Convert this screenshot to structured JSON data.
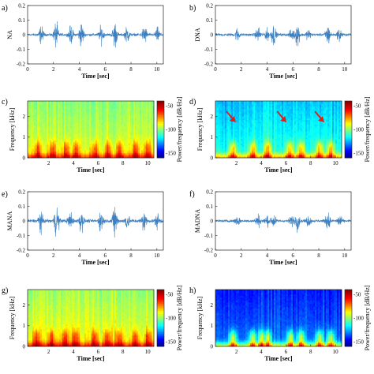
{
  "chart_data": [
    {
      "panel": "a)",
      "type": "line",
      "ylabel": "NA",
      "xlabel": "Time [sec]",
      "xlim": [
        0,
        10.5
      ],
      "xticks": [
        0,
        2,
        4,
        6,
        8,
        10
      ],
      "ylim": [
        -0.2,
        0.2
      ],
      "yticks": [
        -0.2,
        -0.1,
        0,
        0.1,
        0.2
      ],
      "ytick_labels": [
        "-0.2",
        "-0.1",
        "0",
        "0.1",
        "0.2"
      ],
      "bursts": [
        {
          "t": 1.05,
          "amp": 0.08
        },
        {
          "t": 2.2,
          "amp": 0.12
        },
        {
          "t": 3.35,
          "amp": 0.08
        },
        {
          "t": 4.15,
          "amp": 0.12
        },
        {
          "t": 5.7,
          "amp": 0.08
        },
        {
          "t": 6.75,
          "amp": 0.12
        },
        {
          "t": 7.7,
          "amp": 0.07
        },
        {
          "t": 9.05,
          "amp": 0.09
        },
        {
          "t": 10.05,
          "amp": 0.06
        }
      ],
      "noise_amp": 0.012,
      "color": "#3d7fbf"
    },
    {
      "panel": "b)",
      "type": "line",
      "ylabel": "DNA",
      "xlabel": "Time [sec]",
      "xlim": [
        0,
        10.5
      ],
      "xticks": [
        0,
        2,
        4,
        6,
        8,
        10
      ],
      "ylim": [
        -0.2,
        0.2
      ],
      "yticks": [
        -0.2,
        -0.1,
        0,
        0.1,
        0.2
      ],
      "ytick_labels": [
        "-0.2",
        "-0.1",
        "0",
        "0.1",
        "0.2"
      ],
      "bursts": [
        {
          "t": 1.7,
          "amp": 0.06
        },
        {
          "t": 3.3,
          "amp": 0.07
        },
        {
          "t": 4.0,
          "amp": 0.05
        },
        {
          "t": 4.5,
          "amp": 0.1
        },
        {
          "t": 5.9,
          "amp": 0.05
        },
        {
          "t": 6.35,
          "amp": 0.11
        },
        {
          "t": 7.2,
          "amp": 0.05
        },
        {
          "t": 8.7,
          "amp": 0.1
        },
        {
          "t": 9.6,
          "amp": 0.06
        }
      ],
      "noise_amp": 0.012,
      "color": "#3d7fbf"
    },
    {
      "panel": "c)",
      "type": "heatmap",
      "ylabel": "Frequency [kHz]",
      "xlabel": "Time [sec]",
      "xlim": [
        0.3,
        10.5
      ],
      "xticks": [
        2,
        4,
        6,
        8,
        10
      ],
      "ylim": [
        0,
        2.75
      ],
      "yticks": [
        0,
        1,
        2
      ],
      "ytick_labels": [
        "0",
        "1",
        "2"
      ],
      "colorbar": {
        "label": "Power/frequency [dB/Hz]",
        "ticks": [
          -50,
          -100,
          -150
        ],
        "range": [
          -160,
          -40
        ]
      },
      "background_db": -90,
      "hot_times": [
        1.1,
        2.3,
        3.4,
        4.2,
        5.7,
        6.8,
        7.7,
        9.0,
        10.0
      ],
      "hot_db": -48
    },
    {
      "panel": "d)",
      "type": "heatmap",
      "ylabel": "Frequency [kHz]",
      "xlabel": "Time [sec]",
      "xlim": [
        0.3,
        10.5
      ],
      "xticks": [
        2,
        4,
        6,
        8,
        10
      ],
      "ylim": [
        0,
        2.75
      ],
      "yticks": [
        0,
        1,
        2
      ],
      "ytick_labels": [
        "0",
        "1",
        "2"
      ],
      "colorbar": {
        "label": "Power/frequency [dB/Hz]",
        "ticks": [
          -50,
          -100,
          -150
        ],
        "range": [
          -160,
          -40
        ]
      },
      "background_db": -112,
      "hot_times": [
        1.7,
        3.3,
        4.5,
        6.3,
        7.2,
        8.7,
        9.6
      ],
      "hot_db": -55,
      "arrows": [
        1.95,
        6.05,
        9.1
      ]
    },
    {
      "panel": "e)",
      "type": "line",
      "ylabel": "MANA",
      "xlabel": "Time [sec]",
      "xlim": [
        0,
        10.5
      ],
      "xticks": [
        0,
        2,
        4,
        6,
        8,
        10
      ],
      "ylim": [
        -0.2,
        0.2
      ],
      "yticks": [
        -0.2,
        -0.1,
        0,
        0.1,
        0.2
      ],
      "ytick_labels": [
        "-0.2",
        "-0.1",
        "0",
        "0.1",
        "0.2"
      ],
      "bursts": [
        {
          "t": 1.0,
          "amp": 0.09
        },
        {
          "t": 2.25,
          "amp": 0.16
        },
        {
          "t": 3.3,
          "amp": 0.08
        },
        {
          "t": 4.15,
          "amp": 0.11
        },
        {
          "t": 5.7,
          "amp": 0.1
        },
        {
          "t": 6.75,
          "amp": 0.15
        },
        {
          "t": 7.7,
          "amp": 0.08
        },
        {
          "t": 9.0,
          "amp": 0.1
        },
        {
          "t": 10.05,
          "amp": 0.07
        }
      ],
      "noise_amp": 0.015,
      "color": "#3d7fbf"
    },
    {
      "panel": "f)",
      "type": "line",
      "ylabel": "MADNA",
      "xlabel": "Time [sec]",
      "xlim": [
        0,
        10.5
      ],
      "xticks": [
        0,
        2,
        4,
        6,
        8,
        10
      ],
      "ylim": [
        -0.2,
        0.2
      ],
      "yticks": [
        -0.2,
        -0.1,
        0,
        0.1,
        0.2
      ],
      "ytick_labels": [
        "-0.2",
        "-0.1",
        "0",
        "0.1",
        "0.2"
      ],
      "bursts": [
        {
          "t": 1.7,
          "amp": 0.06
        },
        {
          "t": 3.3,
          "amp": 0.06
        },
        {
          "t": 4.0,
          "amp": 0.05
        },
        {
          "t": 4.5,
          "amp": 0.07
        },
        {
          "t": 5.9,
          "amp": 0.05
        },
        {
          "t": 6.35,
          "amp": 0.08
        },
        {
          "t": 7.2,
          "amp": 0.05
        },
        {
          "t": 8.7,
          "amp": 0.08
        },
        {
          "t": 9.6,
          "amp": 0.05
        }
      ],
      "noise_amp": 0.012,
      "color": "#3d7fbf"
    },
    {
      "panel": "g)",
      "type": "heatmap",
      "ylabel": "Frequency [kHz]",
      "xlabel": "Time [sec]",
      "xlim": [
        0.3,
        10.5
      ],
      "xticks": [
        2,
        4,
        6,
        8,
        10
      ],
      "ylim": [
        0,
        2.75
      ],
      "yticks": [
        0,
        1,
        2
      ],
      "ytick_labels": [
        "0",
        "1",
        "2"
      ],
      "colorbar": {
        "label": "Power/frequency [dB/Hz]",
        "ticks": [
          -50,
          -100,
          -150
        ],
        "range": [
          -160,
          -40
        ]
      },
      "background_db": -88,
      "hot_times": [
        1.0,
        2.25,
        3.3,
        4.15,
        5.7,
        6.75,
        7.7,
        9.0,
        10.05
      ],
      "hot_db": -45
    },
    {
      "panel": "h)",
      "type": "heatmap",
      "ylabel": "Frequency [kHz]",
      "xlabel": "Time [sec]",
      "xlim": [
        0.3,
        10.5
      ],
      "xticks": [
        2,
        4,
        6,
        8,
        10
      ],
      "ylim": [
        0,
        2.75
      ],
      "yticks": [
        0,
        1,
        2
      ],
      "ytick_labels": [
        "0",
        "1",
        "2"
      ],
      "colorbar": {
        "label": "Power/frequency [dB/Hz]",
        "ticks": [
          -50,
          -100,
          -150
        ],
        "range": [
          -160,
          -40
        ]
      },
      "background_db": -132,
      "hot_times": [
        1.7,
        3.3,
        4.0,
        4.5,
        6.35,
        7.2,
        8.7,
        9.6
      ],
      "hot_db": -62
    }
  ],
  "colors": {
    "waveform": "#3d7fbf",
    "arrow": "#e0201b"
  }
}
